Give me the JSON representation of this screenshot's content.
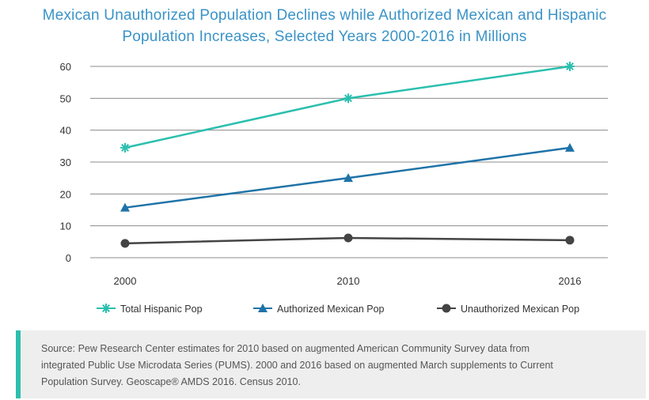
{
  "chart_data": {
    "type": "line",
    "title_line1": "Mexican Unauthorized Population Declines while Authorized Mexican and Hispanic",
    "title_line2": "Population Increases, Selected Years 2000-2016 in Millions",
    "categories": [
      "2000",
      "2010",
      "2016"
    ],
    "ylim": [
      0,
      60
    ],
    "yticks": [
      0,
      10,
      20,
      30,
      40,
      50,
      60
    ],
    "grid": true,
    "legend_placement": "bottom",
    "series": [
      {
        "name": "Total Hispanic Pop",
        "values": [
          34.5,
          50,
          60
        ],
        "color": "#2bbfae",
        "marker": "asterisk"
      },
      {
        "name": "Authorized Mexican Pop",
        "values": [
          15.7,
          25,
          34.5
        ],
        "color": "#1f73a8",
        "marker": "triangle"
      },
      {
        "name": "Unauthorized Mexican Pop",
        "values": [
          4.5,
          6.2,
          5.5
        ],
        "color": "#444444",
        "marker": "circle"
      }
    ]
  },
  "source": {
    "label": "Source:",
    "line1": " Pew Research Center estimates for 2010 based on augmented American Community Survey data from",
    "line2": "integrated Public Use Microdata Series (PUMS). 2000 and 2016 based on augmented March supplements to Current",
    "line3": "Population Survey. Geoscape® AMDS 2016. Census 2010."
  }
}
